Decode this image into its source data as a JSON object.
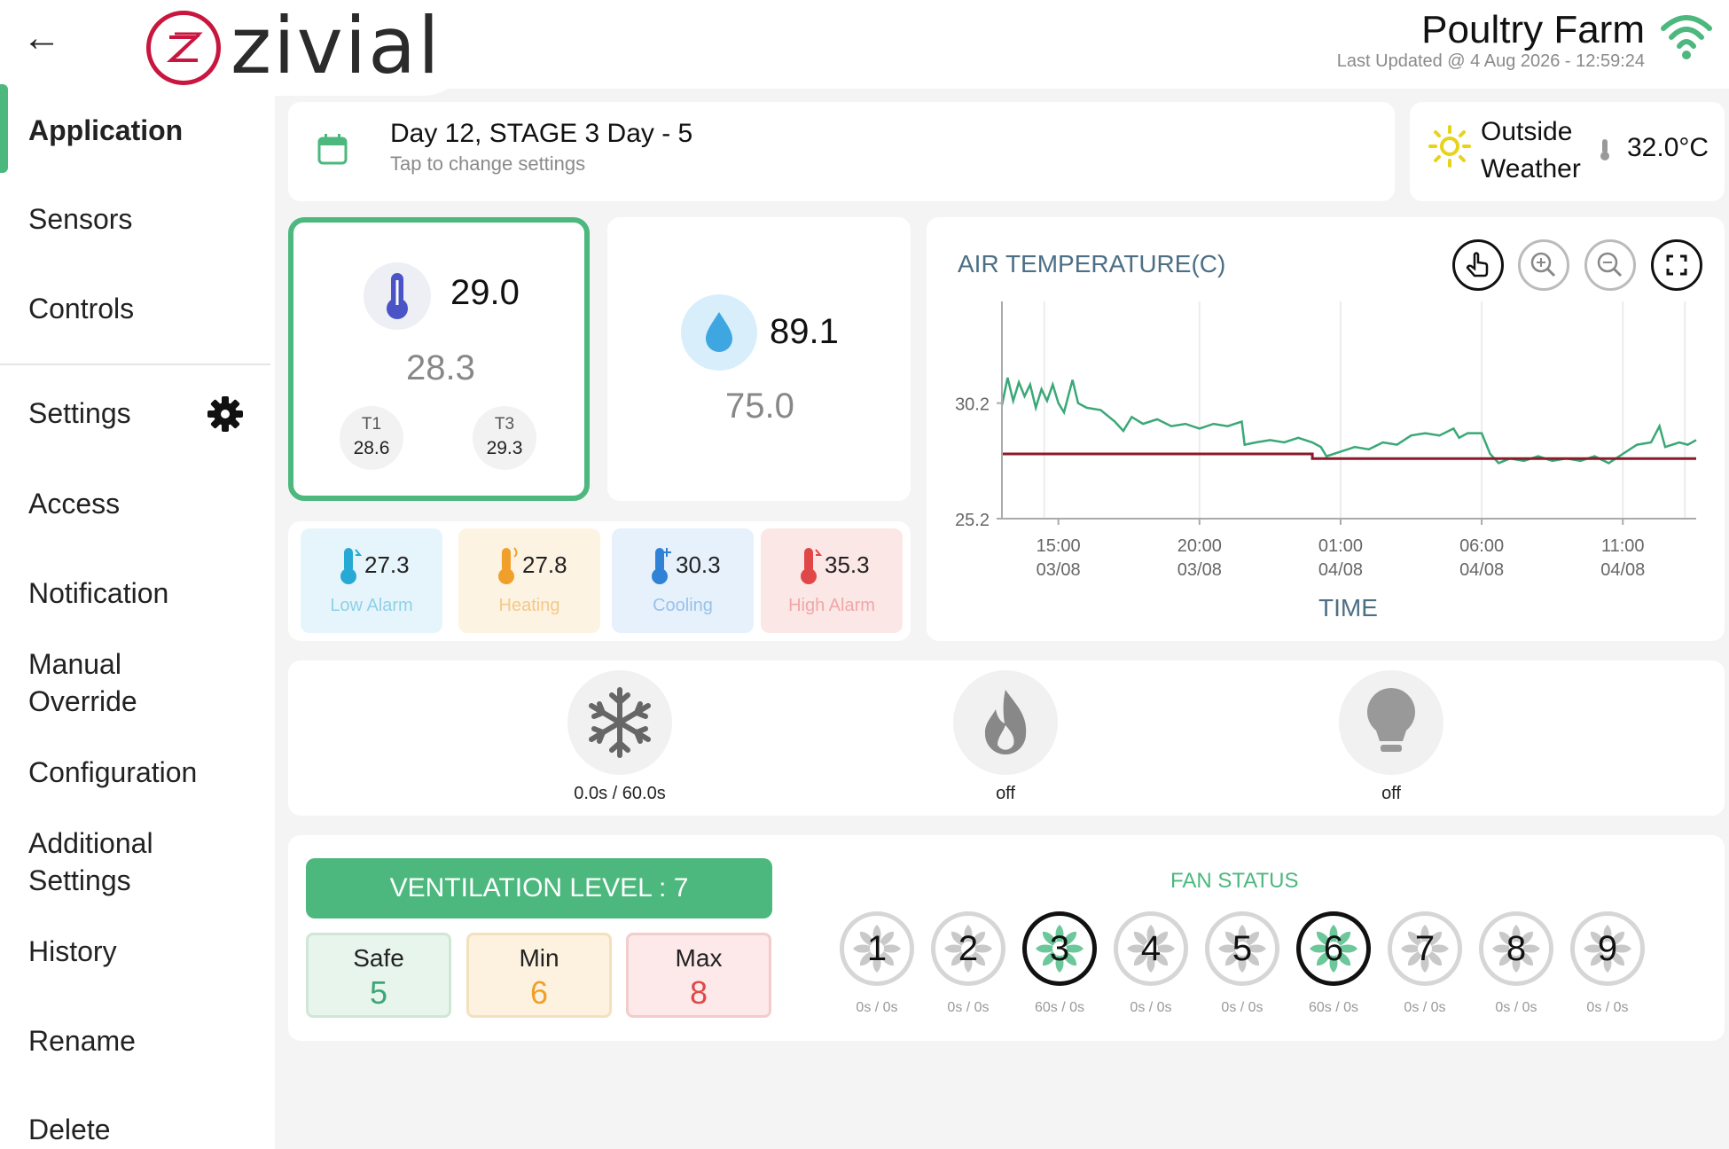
{
  "header": {
    "logo_text": "zivial",
    "farm_title": "Poultry Farm",
    "last_updated": "Last Updated @ 4 Aug 2026 - 12:59:24"
  },
  "sidebar": {
    "items": [
      {
        "label": "Application",
        "active": true
      },
      {
        "label": "Sensors"
      },
      {
        "label": "Controls"
      },
      {
        "label": "Settings"
      },
      {
        "label": "Access"
      },
      {
        "label": "Notification"
      },
      {
        "label": "Manual Override"
      },
      {
        "label": "Configuration"
      },
      {
        "label": "Additional Settings"
      },
      {
        "label": "History"
      },
      {
        "label": "Rename"
      },
      {
        "label": "Delete"
      }
    ]
  },
  "day": {
    "title": "Day 12, STAGE 3 Day - 5",
    "subtitle": "Tap to change settings"
  },
  "weather": {
    "label": "Outside Weather",
    "temp": "32.0°C"
  },
  "temperature": {
    "current": "29.0",
    "setpoint": "28.3",
    "sensors": [
      {
        "name": "T1",
        "value": "28.6"
      },
      {
        "name": "T3",
        "value": "29.3"
      }
    ]
  },
  "humidity": {
    "current": "89.1",
    "setpoint": "75.0"
  },
  "alarms": [
    {
      "value": "27.3",
      "label": "Low Alarm",
      "color": "#27a9d6"
    },
    {
      "value": "27.8",
      "label": "Heating",
      "color": "#f0a02a"
    },
    {
      "value": "30.3",
      "label": "Cooling",
      "color": "#2f82d6"
    },
    {
      "value": "35.3",
      "label": "High Alarm",
      "color": "#e04848"
    }
  ],
  "chart_data": {
    "type": "line",
    "title": "AIR TEMPERATURE(C)",
    "xlabel": "TIME",
    "ylabel": "",
    "x_ticks": [
      "15:00\n03/08",
      "20:00\n03/08",
      "01:00\n04/08",
      "06:00\n04/08",
      "11:00\n04/08"
    ],
    "y_ticks": [
      "30.2",
      "25.2"
    ],
    "series": [
      {
        "color": "#3aa876",
        "values": [
          [
            13.0,
            30.1
          ],
          [
            13.2,
            31.3
          ],
          [
            13.4,
            30.3
          ],
          [
            13.6,
            31.1
          ],
          [
            13.8,
            30.5
          ],
          [
            14.0,
            31.0
          ],
          [
            14.2,
            30.0
          ],
          [
            14.4,
            30.8
          ],
          [
            14.6,
            30.3
          ],
          [
            14.8,
            31.0
          ],
          [
            15.0,
            30.2
          ],
          [
            15.2,
            29.8
          ],
          [
            15.5,
            31.2
          ],
          [
            15.7,
            30.2
          ],
          [
            16.0,
            30.0
          ],
          [
            16.5,
            29.9
          ],
          [
            17.0,
            29.4
          ],
          [
            17.3,
            29.0
          ],
          [
            17.6,
            29.6
          ],
          [
            18.0,
            29.3
          ],
          [
            18.5,
            29.5
          ],
          [
            19.0,
            29.2
          ],
          [
            19.5,
            29.3
          ],
          [
            20.0,
            29.1
          ],
          [
            20.5,
            29.3
          ],
          [
            21.0,
            29.2
          ],
          [
            21.5,
            29.4
          ],
          [
            21.6,
            28.4
          ],
          [
            22.0,
            28.5
          ],
          [
            22.5,
            28.6
          ],
          [
            23.0,
            28.5
          ],
          [
            23.5,
            28.7
          ],
          [
            24.0,
            28.5
          ],
          [
            24.3,
            28.3
          ],
          [
            24.5,
            27.9
          ],
          [
            25.0,
            28.1
          ],
          [
            25.5,
            28.3
          ],
          [
            26.0,
            28.2
          ],
          [
            26.5,
            28.5
          ],
          [
            27.0,
            28.4
          ],
          [
            27.5,
            28.8
          ],
          [
            28.0,
            28.9
          ],
          [
            28.5,
            28.8
          ],
          [
            29.0,
            29.1
          ],
          [
            29.2,
            28.7
          ],
          [
            29.5,
            28.9
          ],
          [
            30.0,
            28.9
          ],
          [
            30.3,
            28.0
          ],
          [
            30.6,
            27.6
          ],
          [
            31.0,
            27.8
          ],
          [
            31.5,
            27.7
          ],
          [
            32.0,
            27.9
          ],
          [
            32.5,
            27.7
          ],
          [
            33.0,
            27.8
          ],
          [
            33.5,
            27.7
          ],
          [
            34.0,
            27.9
          ],
          [
            34.5,
            27.6
          ],
          [
            35.0,
            28.0
          ],
          [
            35.5,
            28.4
          ],
          [
            36.0,
            28.5
          ],
          [
            36.3,
            29.2
          ],
          [
            36.5,
            28.3
          ],
          [
            37.0,
            28.5
          ],
          [
            37.3,
            28.4
          ],
          [
            37.6,
            28.6
          ]
        ]
      },
      {
        "color": "#8b1a2b",
        "values": [
          [
            13.0,
            28.0
          ],
          [
            24.0,
            28.0
          ],
          [
            24.0,
            27.8
          ],
          [
            37.6,
            27.8
          ]
        ]
      }
    ],
    "xlim": [
      13.0,
      37.6
    ],
    "ylim": [
      25.2,
      34.6
    ],
    "grid": true,
    "toolbar": [
      "pointer-icon",
      "zoom-in-icon",
      "zoom-out-icon",
      "fullscreen-icon"
    ]
  },
  "actuators": [
    {
      "icon": "snowflake-icon",
      "status": "0.0s / 60.0s"
    },
    {
      "icon": "flame-icon",
      "status": "off"
    },
    {
      "icon": "bulb-icon",
      "status": "off"
    }
  ],
  "ventilation": {
    "level_label": "VENTILATION LEVEL : 7",
    "levels": [
      {
        "label": "Safe",
        "value": "5",
        "bg": "#e8f5ec",
        "color": "#3aa876",
        "border": "#cfe8d6"
      },
      {
        "label": "Min",
        "value": "6",
        "bg": "#fdf2e0",
        "color": "#f0a02a",
        "border": "#f5e0bd"
      },
      {
        "label": "Max",
        "value": "8",
        "bg": "#fde9e9",
        "color": "#e04848",
        "border": "#f3cccc"
      }
    ],
    "fan_status_title": "FAN STATUS",
    "fans": [
      {
        "num": "1",
        "time": "0s / 0s",
        "active": false
      },
      {
        "num": "2",
        "time": "0s / 0s",
        "active": false
      },
      {
        "num": "3",
        "time": "60s / 0s",
        "active": true
      },
      {
        "num": "4",
        "time": "0s / 0s",
        "active": false
      },
      {
        "num": "5",
        "time": "0s / 0s",
        "active": false
      },
      {
        "num": "6",
        "time": "60s / 0s",
        "active": true
      },
      {
        "num": "7",
        "time": "0s / 0s",
        "active": false
      },
      {
        "num": "8",
        "time": "0s / 0s",
        "active": false
      },
      {
        "num": "9",
        "time": "0s / 0s",
        "active": false
      }
    ]
  }
}
